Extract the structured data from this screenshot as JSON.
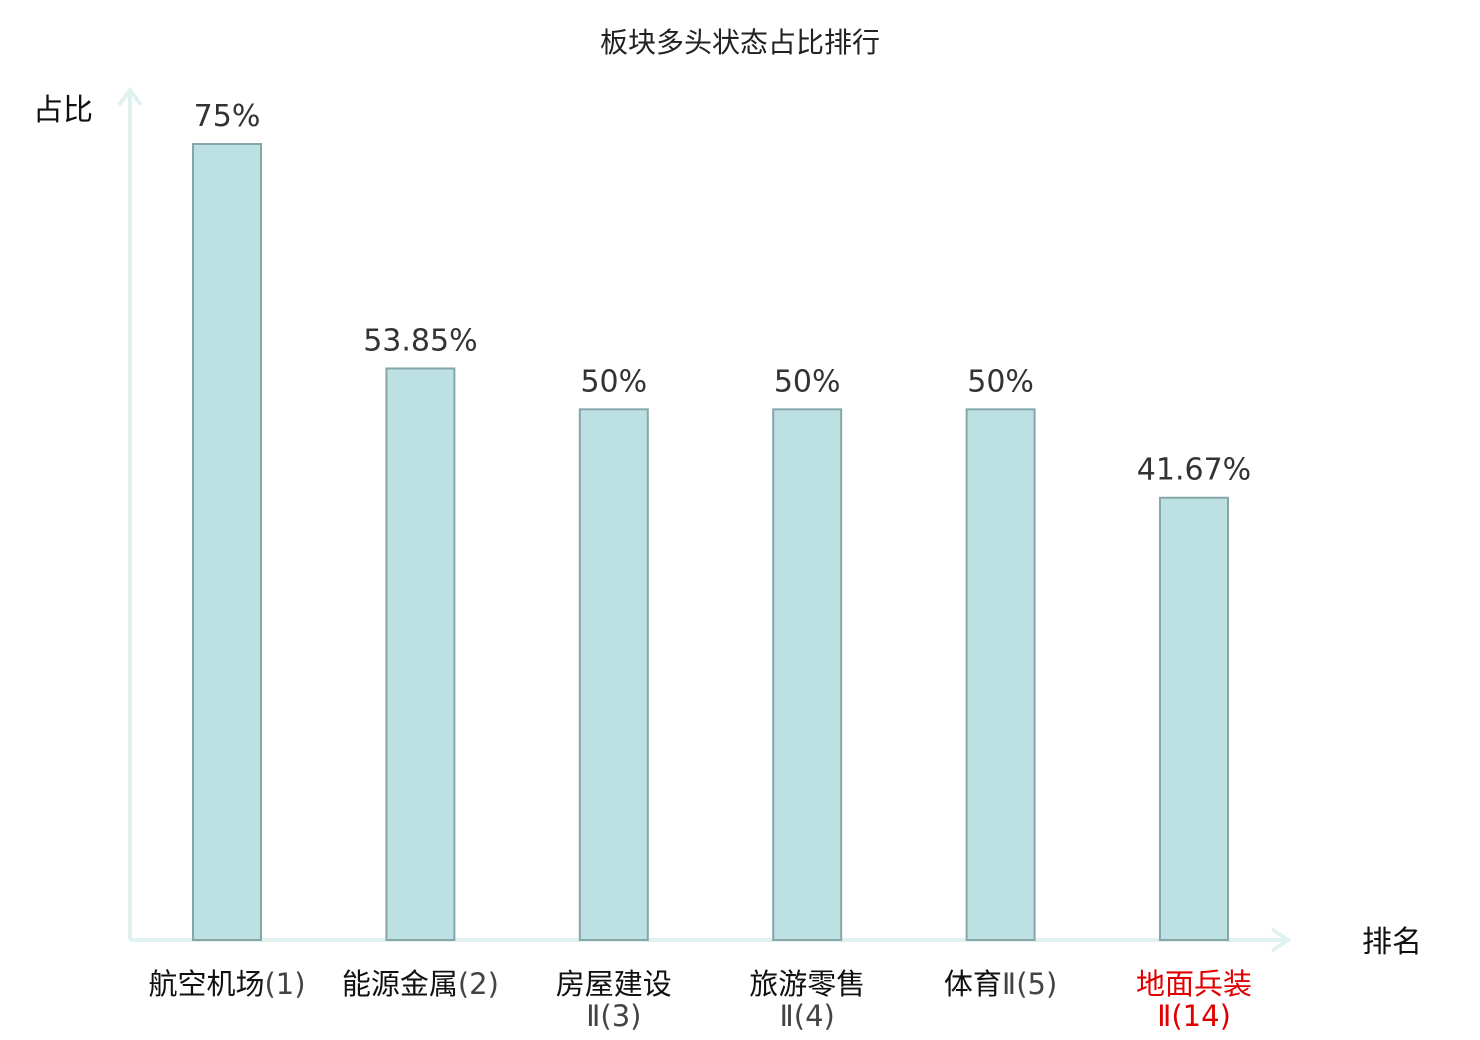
{
  "chart_data": {
    "type": "bar",
    "title": "板块多头状态占比排行",
    "ylabel": "占比",
    "xlabel": "排名",
    "unit": "%",
    "ylim": [
      0,
      75
    ],
    "grid": false,
    "legend": "none",
    "categories": [
      {
        "name": "航空机场",
        "rank_suffix": "(1)",
        "highlight": false
      },
      {
        "name": "能源金属",
        "rank_suffix": "(2)",
        "highlight": false
      },
      {
        "name": "房屋建设",
        "rank_suffix": "Ⅱ(3)",
        "highlight": false
      },
      {
        "name": "旅游零售",
        "rank_suffix": "Ⅱ(4)",
        "highlight": false
      },
      {
        "name": "体育",
        "rank_suffix": "Ⅱ(5)",
        "highlight": false
      },
      {
        "name": "地面兵装",
        "rank_suffix": "Ⅱ(14)",
        "highlight": true
      }
    ],
    "values": [
      75,
      53.85,
      50,
      50,
      50,
      41.67
    ],
    "value_labels": [
      "75%",
      "53.85%",
      "50%",
      "50%",
      "50%",
      "41.67%"
    ]
  },
  "colors": {
    "bar_fill": "#bde0e2",
    "bar_stroke": "#86a7a9",
    "axis": "#e0f2ef",
    "label": "#111111",
    "suffix": "#444444",
    "highlight": "#e00000"
  }
}
